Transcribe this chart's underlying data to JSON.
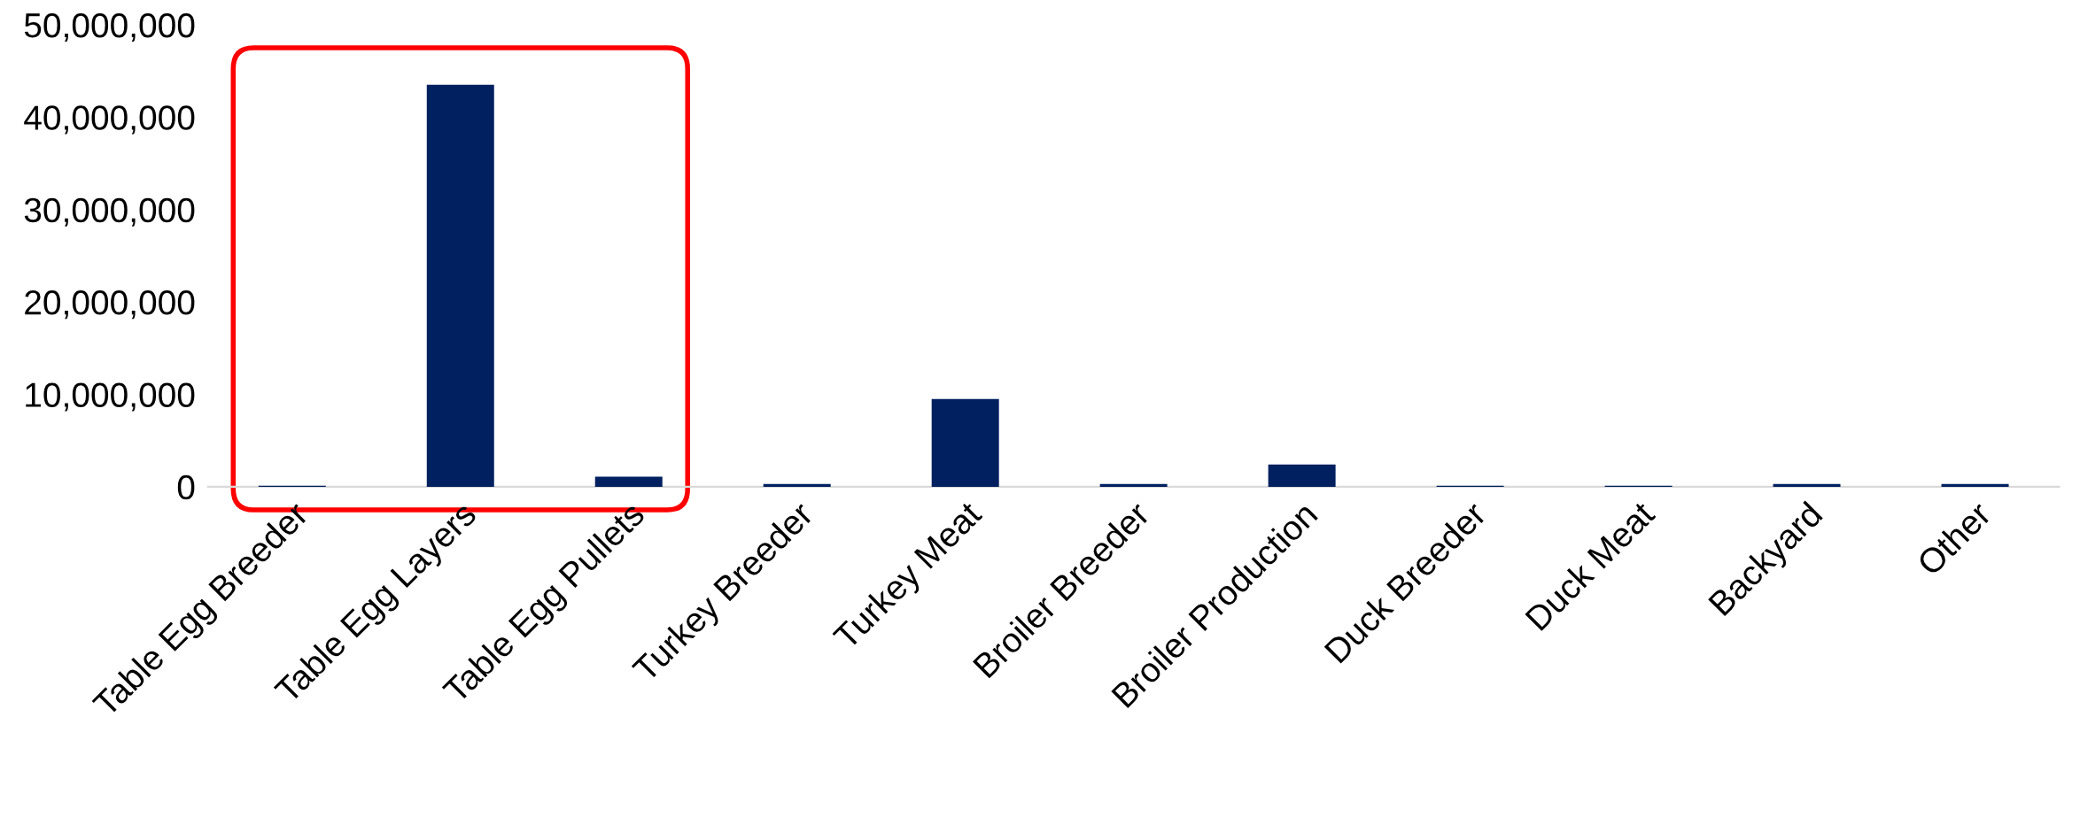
{
  "chart_data": {
    "type": "bar",
    "categories": [
      "Table Egg Breeder",
      "Table Egg Layers",
      "Table Egg Pullets",
      "Turkey Breeder",
      "Turkey Meat",
      "Broiler Breeder",
      "Broiler Production",
      "Duck Breeder",
      "Duck Meat",
      "Backyard",
      "Other"
    ],
    "values": [
      100000,
      43500000,
      1100000,
      300000,
      9500000,
      300000,
      2400000,
      100000,
      100000,
      300000,
      300000
    ],
    "color": "#002060",
    "ylim": [
      0,
      50000000
    ],
    "yticks": [
      {
        "value": 0,
        "label": "0"
      },
      {
        "value": 10000000,
        "label": "10,000,000"
      },
      {
        "value": 20000000,
        "label": "20,000,000"
      },
      {
        "value": 30000000,
        "label": "30,000,000"
      },
      {
        "value": 40000000,
        "label": "40,000,000"
      },
      {
        "value": 50000000,
        "label": "50,000,000"
      }
    ],
    "grid": false,
    "legend": false
  }
}
